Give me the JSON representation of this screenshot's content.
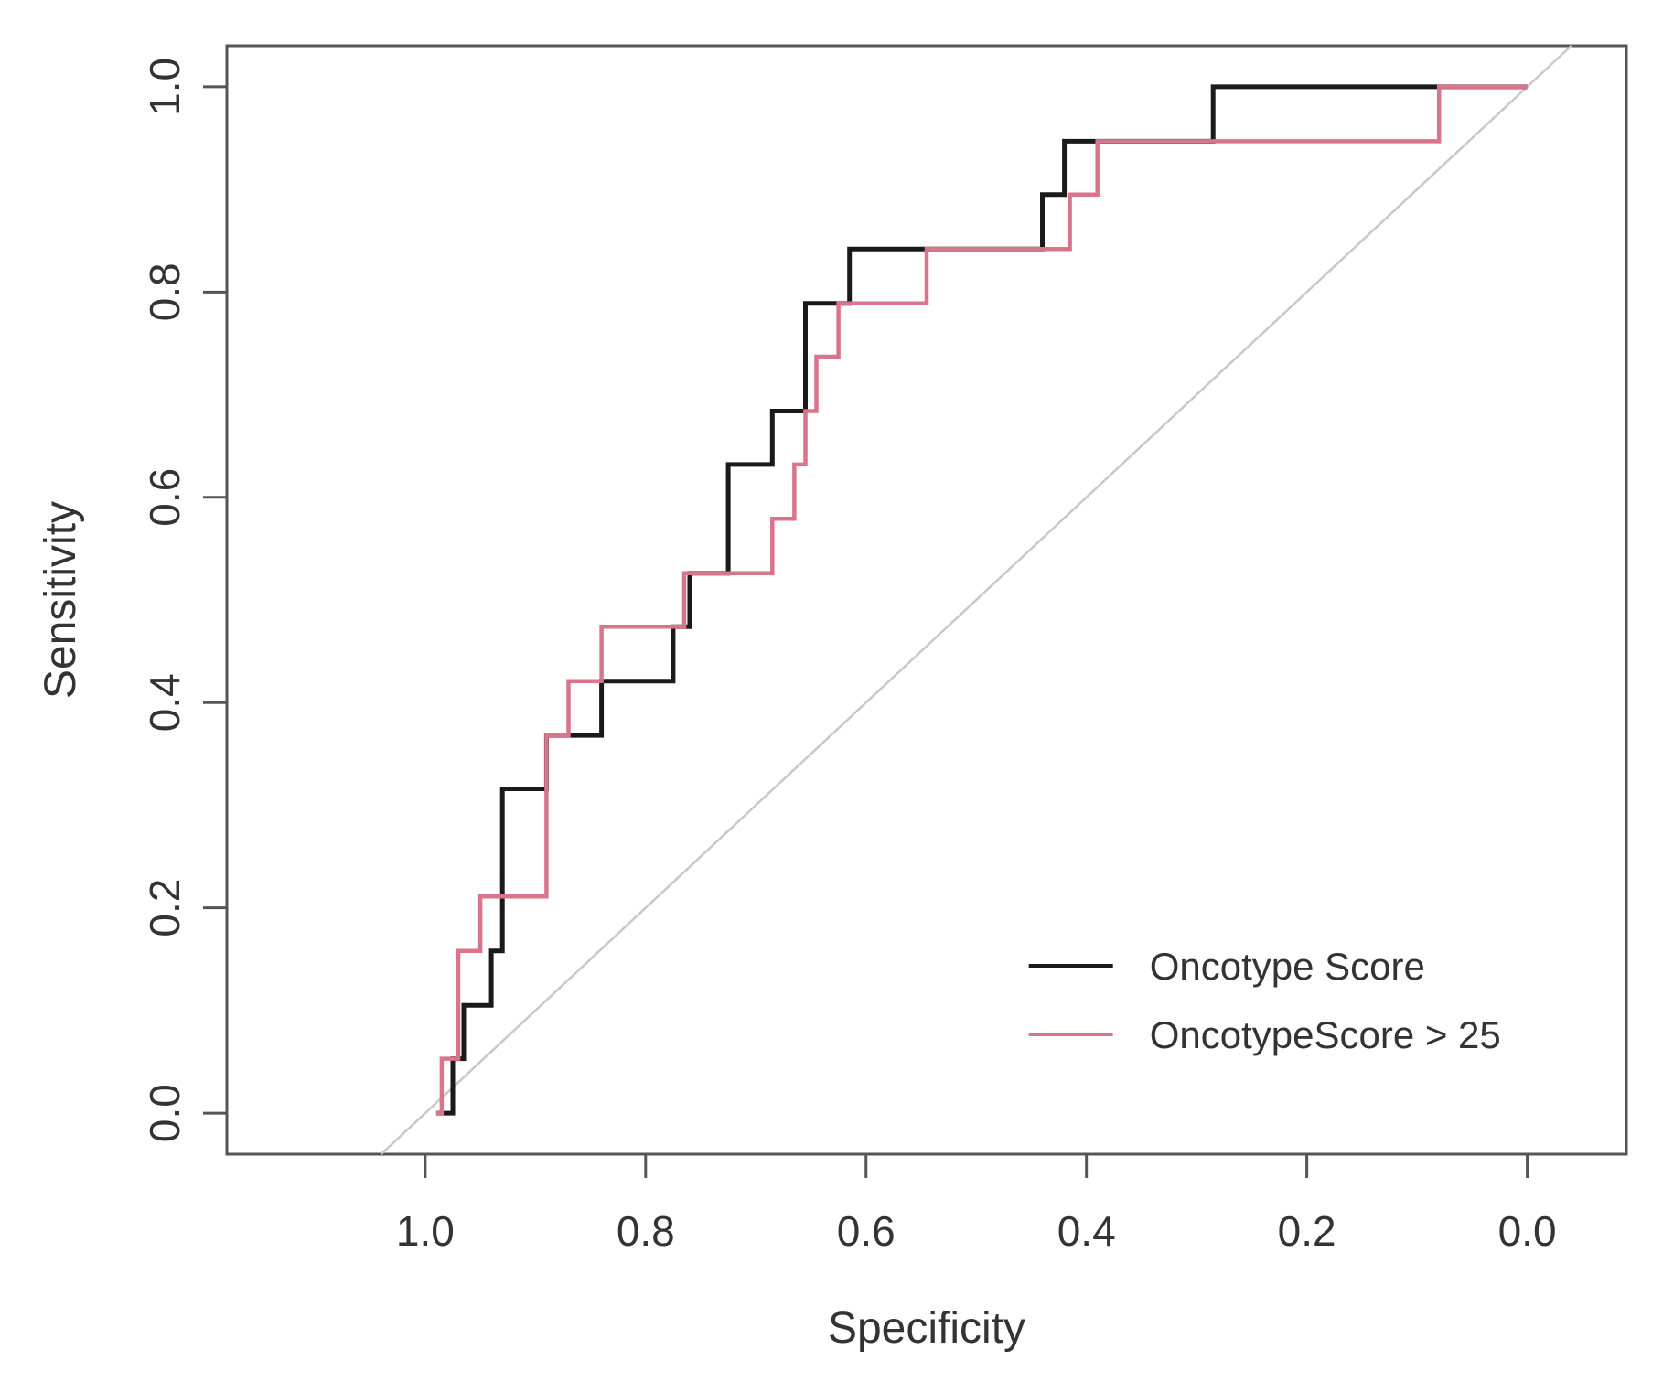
{
  "chart_data": {
    "type": "line",
    "title": "",
    "xlabel": "Specificity",
    "ylabel": "Sensitivity",
    "x_reversed": true,
    "xlim": [
      1.18,
      -0.09
    ],
    "ylim": [
      -0.04,
      1.04
    ],
    "x_ticks": [
      1.0,
      0.8,
      0.6,
      0.4,
      0.2,
      0.0
    ],
    "x_tick_labels": [
      "1.0",
      "0.8",
      "0.6",
      "0.4",
      "0.2",
      "0.0"
    ],
    "y_ticks": [
      0.0,
      0.2,
      0.4,
      0.6,
      0.8,
      1.0
    ],
    "y_tick_labels": [
      "0.0",
      "0.2",
      "0.4",
      "0.6",
      "0.8",
      "1.0"
    ],
    "reference_line": {
      "from": [
        1.04,
        -0.04
      ],
      "to": [
        -0.04,
        1.04
      ],
      "color": "#c8c8c8"
    },
    "legend_position": "bottom-right",
    "series": [
      {
        "name": "Oncotype Score",
        "color": "#1a1a1a",
        "points": [
          [
            0.99,
            0.0
          ],
          [
            0.975,
            0.0
          ],
          [
            0.975,
            0.053
          ],
          [
            0.965,
            0.053
          ],
          [
            0.965,
            0.105
          ],
          [
            0.94,
            0.105
          ],
          [
            0.94,
            0.158
          ],
          [
            0.93,
            0.158
          ],
          [
            0.93,
            0.316
          ],
          [
            0.89,
            0.316
          ],
          [
            0.89,
            0.368
          ],
          [
            0.84,
            0.368
          ],
          [
            0.84,
            0.421
          ],
          [
            0.775,
            0.421
          ],
          [
            0.775,
            0.474
          ],
          [
            0.76,
            0.474
          ],
          [
            0.76,
            0.526
          ],
          [
            0.725,
            0.526
          ],
          [
            0.725,
            0.632
          ],
          [
            0.685,
            0.632
          ],
          [
            0.685,
            0.684
          ],
          [
            0.655,
            0.684
          ],
          [
            0.655,
            0.789
          ],
          [
            0.615,
            0.789
          ],
          [
            0.615,
            0.842
          ],
          [
            0.44,
            0.842
          ],
          [
            0.44,
            0.895
          ],
          [
            0.42,
            0.895
          ],
          [
            0.42,
            0.947
          ],
          [
            0.285,
            0.947
          ],
          [
            0.285,
            1.0
          ],
          [
            0.0,
            1.0
          ]
        ]
      },
      {
        "name": "OncotypeScore > 25",
        "color": "#d9748b",
        "points": [
          [
            0.99,
            0.0
          ],
          [
            0.985,
            0.0
          ],
          [
            0.985,
            0.053
          ],
          [
            0.97,
            0.053
          ],
          [
            0.97,
            0.158
          ],
          [
            0.95,
            0.158
          ],
          [
            0.95,
            0.211
          ],
          [
            0.89,
            0.211
          ],
          [
            0.89,
            0.368
          ],
          [
            0.87,
            0.368
          ],
          [
            0.87,
            0.421
          ],
          [
            0.84,
            0.421
          ],
          [
            0.84,
            0.474
          ],
          [
            0.765,
            0.474
          ],
          [
            0.765,
            0.526
          ],
          [
            0.685,
            0.526
          ],
          [
            0.685,
            0.579
          ],
          [
            0.665,
            0.579
          ],
          [
            0.665,
            0.632
          ],
          [
            0.655,
            0.632
          ],
          [
            0.655,
            0.684
          ],
          [
            0.645,
            0.684
          ],
          [
            0.645,
            0.737
          ],
          [
            0.625,
            0.737
          ],
          [
            0.625,
            0.789
          ],
          [
            0.545,
            0.789
          ],
          [
            0.545,
            0.842
          ],
          [
            0.415,
            0.842
          ],
          [
            0.415,
            0.895
          ],
          [
            0.39,
            0.895
          ],
          [
            0.39,
            0.947
          ],
          [
            0.08,
            0.947
          ],
          [
            0.08,
            1.0
          ],
          [
            0.0,
            1.0
          ]
        ]
      }
    ]
  }
}
